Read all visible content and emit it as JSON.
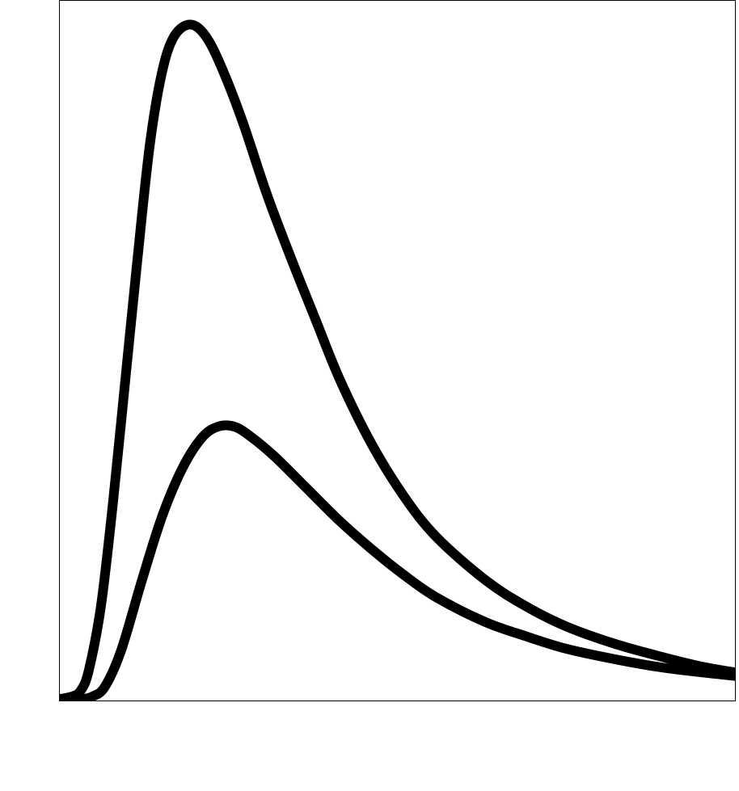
{
  "chart_data": {
    "type": "line",
    "title": "",
    "xlabel": "",
    "ylabel": "",
    "xlim": [
      0,
      1
    ],
    "ylim": [
      0,
      1
    ],
    "grid": false,
    "legend": "none",
    "line_color": "#000000",
    "series": [
      {
        "x": [
          0,
          0.02,
          0.032,
          0.044,
          0.062,
          0.08,
          0.098,
          0.116,
          0.134,
          0.152,
          0.17,
          0.194,
          0.217,
          0.241,
          0.271,
          0.307,
          0.343,
          0.379,
          0.415,
          0.462,
          0.51,
          0.558,
          0.63,
          0.689,
          0.749,
          0.821,
          0.892,
          0.952,
          1.0
        ],
        "y": [
          0.002,
          0.006,
          0.014,
          0.043,
          0.135,
          0.285,
          0.458,
          0.631,
          0.792,
          0.896,
          0.948,
          0.965,
          0.948,
          0.902,
          0.827,
          0.723,
          0.631,
          0.544,
          0.458,
          0.366,
          0.291,
          0.233,
          0.172,
          0.135,
          0.106,
          0.081,
          0.062,
          0.048,
          0.04
        ]
      },
      {
        "x": [
          0,
          0.032,
          0.05,
          0.068,
          0.092,
          0.122,
          0.152,
          0.182,
          0.211,
          0.235,
          0.259,
          0.283,
          0.319,
          0.367,
          0.415,
          0.462,
          0.51,
          0.558,
          0.63,
          0.689,
          0.749,
          0.821,
          0.892,
          0.952,
          1.0
        ],
        "y": [
          0.002,
          0.002,
          0.006,
          0.02,
          0.072,
          0.17,
          0.262,
          0.331,
          0.375,
          0.391,
          0.391,
          0.377,
          0.348,
          0.302,
          0.256,
          0.216,
          0.179,
          0.147,
          0.112,
          0.092,
          0.074,
          0.059,
          0.047,
          0.04,
          0.035
        ]
      }
    ]
  }
}
